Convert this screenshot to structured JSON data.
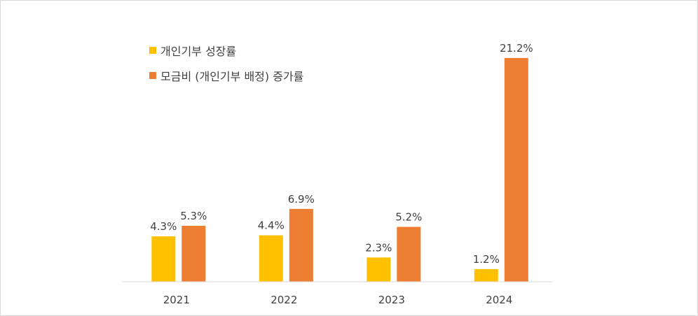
{
  "chart_data": {
    "type": "bar",
    "title": "",
    "xlabel": "",
    "ylabel": "",
    "categories": [
      "2021",
      "2022",
      "2023",
      "2024"
    ],
    "ylim": [
      0,
      24
    ],
    "grid": false,
    "legend_position": "top-left",
    "value_suffix": "%",
    "series": [
      {
        "name": "개인기부 성장률",
        "color": "#FFC000",
        "values": [
          4.3,
          4.4,
          2.3,
          1.2
        ],
        "labels": [
          "4.3%",
          "4.4%",
          "2.3%",
          "1.2%"
        ]
      },
      {
        "name": "모금비 (개인기부 배정) 증가률",
        "color": "#ED7D31",
        "values": [
          5.3,
          6.9,
          5.2,
          21.2
        ],
        "labels": [
          "5.3%",
          "6.9%",
          "5.2%",
          "21.2%"
        ]
      }
    ]
  }
}
